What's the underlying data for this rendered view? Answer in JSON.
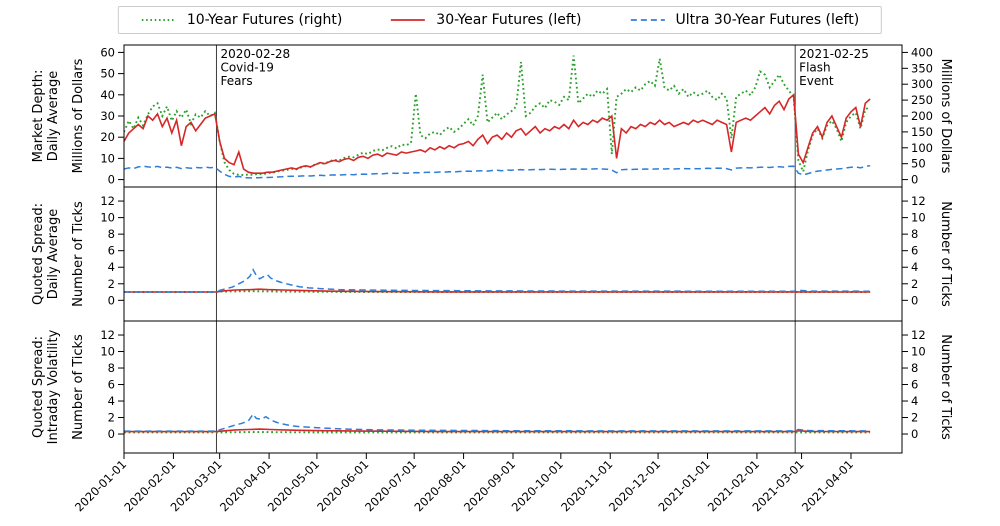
{
  "figure": {
    "background": "#ffffff"
  },
  "legend": {
    "items": [
      {
        "label": "10-Year Futures (right)",
        "color": "#2ca02c",
        "dash": "dotted",
        "dasharray": "1.5 2.8"
      },
      {
        "label": "30-Year Futures (left)",
        "color": "#d62728",
        "dash": "solid",
        "dasharray": ""
      },
      {
        "label": "Ultra 30-Year Futures (left)",
        "color": "#2e7ed8",
        "dash": "dashed",
        "dasharray": "6 4"
      }
    ]
  },
  "events": [
    {
      "day": 58,
      "lines": [
        "2020-02-28",
        "Covid-19",
        "Fears"
      ],
      "color": "#3c3c3c"
    },
    {
      "day": 421,
      "lines": [
        "2021-02-25",
        "Flash",
        "Event"
      ],
      "color": "#3c3c3c"
    }
  ],
  "x_axis": {
    "ticks": [
      {
        "day": 0,
        "label": "2020-01-01"
      },
      {
        "day": 31,
        "label": "2020-02-01"
      },
      {
        "day": 60,
        "label": "2020-03-01"
      },
      {
        "day": 91,
        "label": "2020-04-01"
      },
      {
        "day": 121,
        "label": "2020-05-01"
      },
      {
        "day": 152,
        "label": "2020-06-01"
      },
      {
        "day": 182,
        "label": "2020-07-01"
      },
      {
        "day": 213,
        "label": "2020-08-01"
      },
      {
        "day": 244,
        "label": "2020-09-01"
      },
      {
        "day": 274,
        "label": "2020-10-01"
      },
      {
        "day": 305,
        "label": "2020-11-01"
      },
      {
        "day": 335,
        "label": "2020-12-01"
      },
      {
        "day": 366,
        "label": "2021-01-01"
      },
      {
        "day": 397,
        "label": "2021-02-01"
      },
      {
        "day": 425,
        "label": "2021-03-01"
      },
      {
        "day": 456,
        "label": "2021-04-01"
      }
    ],
    "xlim_days": [
      0,
      488
    ]
  },
  "chart_data": [
    {
      "type": "line",
      "row_label_lines": [
        "Market Depth:",
        "Daily Average"
      ],
      "ylabel": "Millions of Dollars",
      "right_ylabel": "Millions of Dollars",
      "yticks": [
        0,
        10,
        20,
        30,
        40,
        50,
        60
      ],
      "ylim": [
        -3.5,
        63.5
      ],
      "right_yticks": [
        0,
        50,
        100,
        150,
        200,
        250,
        300,
        350,
        400
      ],
      "right_ylim": [
        -23.33,
        423.33
      ],
      "series": [
        {
          "name": "10-Year Futures (right)",
          "axis": "right",
          "color": "#2ca02c",
          "dash": "dotted",
          "width": 1.9,
          "start_day": 0,
          "step_days": 3,
          "values": [
            150,
            185,
            160,
            195,
            170,
            205,
            230,
            240,
            200,
            230,
            185,
            215,
            195,
            220,
            175,
            205,
            195,
            215,
            200,
            210,
            120,
            55,
            30,
            18,
            15,
            14,
            16,
            15,
            18,
            17,
            20,
            22,
            25,
            28,
            30,
            34,
            32,
            38,
            42,
            40,
            48,
            52,
            50,
            58,
            62,
            60,
            68,
            72,
            70,
            78,
            85,
            80,
            90,
            95,
            92,
            100,
            105,
            98,
            110,
            108,
            115,
            270,
            140,
            130,
            145,
            150,
            140,
            155,
            165,
            150,
            160,
            175,
            190,
            170,
            200,
            330,
            180,
            195,
            210,
            190,
            205,
            215,
            230,
            370,
            200,
            210,
            230,
            240,
            225,
            250,
            245,
            235,
            260,
            250,
            390,
            240,
            255,
            270,
            260,
            280,
            270,
            285,
            80,
            260,
            270,
            285,
            275,
            290,
            280,
            300,
            310,
            295,
            380,
            290,
            280,
            295,
            270,
            285,
            260,
            275,
            265,
            270,
            280,
            260,
            250,
            270,
            255,
            130,
            260,
            270,
            280,
            265,
            290,
            340,
            330,
            290,
            310,
            330,
            300,
            280,
            260,
            60,
            25,
            90,
            140,
            160,
            130,
            170,
            185,
            160,
            120,
            180,
            200,
            210,
            160,
            220,
            230
          ]
        },
        {
          "name": "30-Year Futures (left)",
          "axis": "left",
          "color": "#d62728",
          "dash": "solid",
          "width": 1.6,
          "start_day": 0,
          "step_days": 3,
          "values": [
            18,
            22,
            24,
            26,
            24,
            30,
            28,
            31,
            25,
            29,
            22,
            28,
            16,
            25,
            27,
            23,
            26,
            29,
            30,
            31,
            18,
            10,
            8,
            7,
            13,
            5,
            3.5,
            3,
            3,
            3,
            3.5,
            3.5,
            4,
            4.5,
            5,
            5.5,
            5,
            6,
            6.5,
            6,
            7,
            8,
            7.5,
            8.5,
            9,
            8.5,
            9.5,
            10,
            9,
            10.5,
            11,
            10,
            11.5,
            12,
            11,
            12.5,
            12,
            11.5,
            13,
            12.5,
            13,
            13.5,
            14,
            13,
            15,
            14,
            15.5,
            14.5,
            16,
            15,
            16.5,
            17,
            18,
            16,
            19,
            21,
            17,
            20,
            21,
            19,
            22,
            20,
            23,
            24,
            21,
            23,
            25,
            22,
            24,
            23,
            25,
            24,
            26,
            24,
            28,
            25,
            27,
            26,
            28,
            27,
            29,
            28,
            30,
            10,
            24,
            22,
            25,
            24,
            26,
            25,
            27,
            26,
            28,
            26,
            27,
            25,
            26,
            27,
            26,
            28,
            27,
            28,
            27,
            26,
            28,
            27,
            26,
            13,
            27,
            28,
            29,
            28,
            30,
            32,
            34,
            31,
            35,
            37,
            33,
            38,
            40,
            12,
            8,
            15,
            22,
            25,
            20,
            27,
            30,
            25,
            20,
            29,
            32,
            34,
            25,
            36,
            38
          ]
        },
        {
          "name": "Ultra 30-Year Futures (left)",
          "axis": "left",
          "color": "#2e7ed8",
          "dash": "dashed",
          "width": 1.5,
          "start_day": 0,
          "step_days": 3,
          "values": [
            5,
            5.5,
            5.2,
            6,
            6.3,
            6,
            5.8,
            6.2,
            5.6,
            5.9,
            5.4,
            5.8,
            5.2,
            5.6,
            5.3,
            5.7,
            5.5,
            5.9,
            5.6,
            5.8,
            4,
            2.5,
            1.5,
            1.2,
            1.5,
            1,
            0.8,
            0.8,
            0.9,
            1,
            1,
            1.1,
            1.2,
            1.3,
            1.5,
            1.6,
            1.5,
            1.7,
            1.8,
            1.7,
            1.9,
            2,
            1.9,
            2.1,
            2.2,
            2.1,
            2.3,
            2.4,
            2.3,
            2.5,
            2.6,
            2.5,
            2.7,
            2.8,
            2.7,
            2.9,
            3,
            2.9,
            3.1,
            3,
            3.2,
            3.3,
            3.2,
            3.4,
            3.5,
            3.4,
            3.6,
            3.5,
            3.7,
            3.6,
            3.8,
            3.9,
            4,
            3.8,
            4.1,
            4.2,
            4,
            4.3,
            4.4,
            4.2,
            4.5,
            4.4,
            4.6,
            4.7,
            4.5,
            4.6,
            4.8,
            4.7,
            4.8,
            4.9,
            4.8,
            4.7,
            4.9,
            4.8,
            5,
            4.9,
            5,
            4.9,
            5,
            5.1,
            5,
            4.9,
            4.5,
            3.2,
            4.6,
            4.8,
            4.7,
            4.9,
            4.8,
            5,
            4.9,
            5,
            5.1,
            5,
            5.1,
            5,
            5.1,
            5.2,
            5.1,
            5.2,
            5.1,
            5.2,
            5.3,
            5.2,
            5.4,
            5.3,
            5.2,
            4.5,
            5.4,
            5.5,
            5.6,
            5.5,
            5.7,
            5.8,
            5.9,
            5.7,
            6,
            6.1,
            5.9,
            6.2,
            6.3,
            3,
            2.2,
            2.8,
            3.5,
            4,
            4.2,
            4.5,
            4.8,
            5,
            5.2,
            5.5,
            5.8,
            6,
            5.5,
            6.2,
            6.5
          ]
        }
      ]
    },
    {
      "type": "line",
      "row_label_lines": [
        "Quoted Spread:",
        "Daily Average"
      ],
      "ylabel": "Number of Ticks",
      "right_ylabel": "Number of Ticks",
      "yticks": [
        0,
        2,
        4,
        6,
        8,
        10,
        12
      ],
      "ylim": [
        -2.5,
        13.7
      ],
      "right_yticks": [
        0,
        2,
        4,
        6,
        8,
        10,
        12
      ],
      "right_ylim": [
        -2.5,
        13.7
      ],
      "series": [
        {
          "name": "10-Year Futures (right)",
          "axis": "left",
          "color": "#2ca02c",
          "dash": "dotted",
          "width": 1.9,
          "points": [
            [
              0,
              1
            ],
            [
              55,
              1
            ],
            [
              60,
              1.05
            ],
            [
              80,
              1.1
            ],
            [
              100,
              1.05
            ],
            [
              150,
              1
            ],
            [
              468,
              1
            ]
          ]
        },
        {
          "name": "30-Year Futures (left)",
          "axis": "left",
          "color": "#d62728",
          "dash": "solid",
          "width": 1.6,
          "points": [
            [
              0,
              1
            ],
            [
              58,
              1
            ],
            [
              63,
              1.15
            ],
            [
              70,
              1.25
            ],
            [
              80,
              1.3
            ],
            [
              85,
              1.35
            ],
            [
              90,
              1.3
            ],
            [
              100,
              1.25
            ],
            [
              110,
              1.2
            ],
            [
              130,
              1.1
            ],
            [
              160,
              1.05
            ],
            [
              200,
              1.02
            ],
            [
              468,
              1
            ]
          ]
        },
        {
          "name": "Ultra 30-Year Futures (left)",
          "axis": "left",
          "color": "#2e7ed8",
          "dash": "dashed",
          "width": 1.5,
          "points": [
            [
              0,
              1
            ],
            [
              56,
              1
            ],
            [
              60,
              1.2
            ],
            [
              64,
              1.4
            ],
            [
              68,
              1.6
            ],
            [
              72,
              2
            ],
            [
              76,
              2.4
            ],
            [
              79,
              2.9
            ],
            [
              81,
              3.7
            ],
            [
              83,
              3
            ],
            [
              85,
              2.6
            ],
            [
              88,
              2.9
            ],
            [
              90,
              3.1
            ],
            [
              92,
              2.7
            ],
            [
              95,
              2.4
            ],
            [
              98,
              2.2
            ],
            [
              102,
              2
            ],
            [
              106,
              1.8
            ],
            [
              110,
              1.65
            ],
            [
              116,
              1.5
            ],
            [
              124,
              1.4
            ],
            [
              135,
              1.3
            ],
            [
              150,
              1.25
            ],
            [
              175,
              1.2
            ],
            [
              220,
              1.15
            ],
            [
              280,
              1.12
            ],
            [
              360,
              1.1
            ],
            [
              420,
              1.1
            ],
            [
              424,
              1.2
            ],
            [
              430,
              1.12
            ],
            [
              468,
              1.1
            ]
          ]
        }
      ]
    },
    {
      "type": "line",
      "row_label_lines": [
        "Quoted Spread:",
        "Intraday Volatility"
      ],
      "ylabel": "Number of Ticks",
      "right_ylabel": "Number of Ticks",
      "yticks": [
        0,
        2,
        4,
        6,
        8,
        10,
        12
      ],
      "ylim": [
        -2.3,
        13.7
      ],
      "right_yticks": [
        0,
        2,
        4,
        6,
        8,
        10,
        12
      ],
      "right_ylim": [
        -2.3,
        13.7
      ],
      "series": [
        {
          "name": "10-Year Futures (right)",
          "axis": "left",
          "color": "#2ca02c",
          "dash": "dotted",
          "width": 1.9,
          "points": [
            [
              0,
              0.2
            ],
            [
              60,
              0.2
            ],
            [
              80,
              0.25
            ],
            [
              120,
              0.2
            ],
            [
              468,
              0.2
            ]
          ]
        },
        {
          "name": "30-Year Futures (left)",
          "axis": "left",
          "color": "#d62728",
          "dash": "solid",
          "width": 1.6,
          "points": [
            [
              0,
              0.3
            ],
            [
              58,
              0.3
            ],
            [
              64,
              0.4
            ],
            [
              70,
              0.5
            ],
            [
              78,
              0.55
            ],
            [
              85,
              0.6
            ],
            [
              92,
              0.55
            ],
            [
              100,
              0.5
            ],
            [
              110,
              0.45
            ],
            [
              125,
              0.4
            ],
            [
              150,
              0.35
            ],
            [
              200,
              0.3
            ],
            [
              420,
              0.3
            ],
            [
              423,
              0.4
            ],
            [
              430,
              0.32
            ],
            [
              468,
              0.3
            ]
          ]
        },
        {
          "name": "Ultra 30-Year Futures (left)",
          "axis": "left",
          "color": "#2e7ed8",
          "dash": "dashed",
          "width": 1.5,
          "points": [
            [
              0,
              0.35
            ],
            [
              56,
              0.35
            ],
            [
              60,
              0.5
            ],
            [
              65,
              0.8
            ],
            [
              70,
              1.1
            ],
            [
              74,
              1.3
            ],
            [
              78,
              1.6
            ],
            [
              81,
              2.4
            ],
            [
              83,
              1.9
            ],
            [
              86,
              1.8
            ],
            [
              89,
              2.1
            ],
            [
              92,
              1.7
            ],
            [
              96,
              1.4
            ],
            [
              100,
              1.2
            ],
            [
              105,
              1
            ],
            [
              110,
              0.9
            ],
            [
              118,
              0.8
            ],
            [
              128,
              0.7
            ],
            [
              140,
              0.6
            ],
            [
              160,
              0.5
            ],
            [
              190,
              0.45
            ],
            [
              240,
              0.4
            ],
            [
              320,
              0.38
            ],
            [
              420,
              0.38
            ],
            [
              423,
              0.55
            ],
            [
              430,
              0.42
            ],
            [
              468,
              0.38
            ]
          ]
        }
      ]
    }
  ]
}
